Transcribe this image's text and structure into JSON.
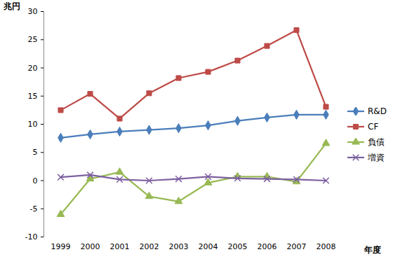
{
  "chart_data": {
    "type": "line",
    "y_label": "兆円",
    "x_label": "年度",
    "categories": [
      "1999",
      "2000",
      "2001",
      "2002",
      "2003",
      "2004",
      "2005",
      "2006",
      "2007",
      "2008"
    ],
    "series": [
      {
        "name": "R&D",
        "color": "#4a7ebb",
        "marker": "diamond",
        "line_style": "solid",
        "values": [
          7.6,
          8.2,
          8.7,
          9.0,
          9.3,
          9.8,
          10.6,
          11.2,
          11.7,
          11.7
        ]
      },
      {
        "name": "CF",
        "color": "#be4b48",
        "marker": "square",
        "line_style": "solid",
        "values": [
          12.5,
          15.4,
          11.0,
          15.5,
          18.2,
          19.3,
          21.3,
          23.9,
          26.7,
          13.1
        ]
      },
      {
        "name": "負債",
        "color": "#98b954",
        "marker": "triangle",
        "line_style": "solid",
        "values": [
          -6.0,
          0.3,
          1.5,
          -2.8,
          -3.7,
          -0.4,
          0.7,
          0.7,
          -0.2,
          6.6
        ]
      },
      {
        "name": "増資",
        "color": "#7d60a0",
        "marker": "x",
        "line_style": "solid",
        "values": [
          0.6,
          1.0,
          0.2,
          0.0,
          0.3,
          0.7,
          0.4,
          0.3,
          0.2,
          0.0
        ]
      }
    ],
    "ylim": [
      -10,
      30
    ],
    "yticks": [
      -10,
      -5,
      0,
      5,
      10,
      15,
      20,
      25,
      30
    ],
    "grid": false,
    "legend": "right"
  }
}
